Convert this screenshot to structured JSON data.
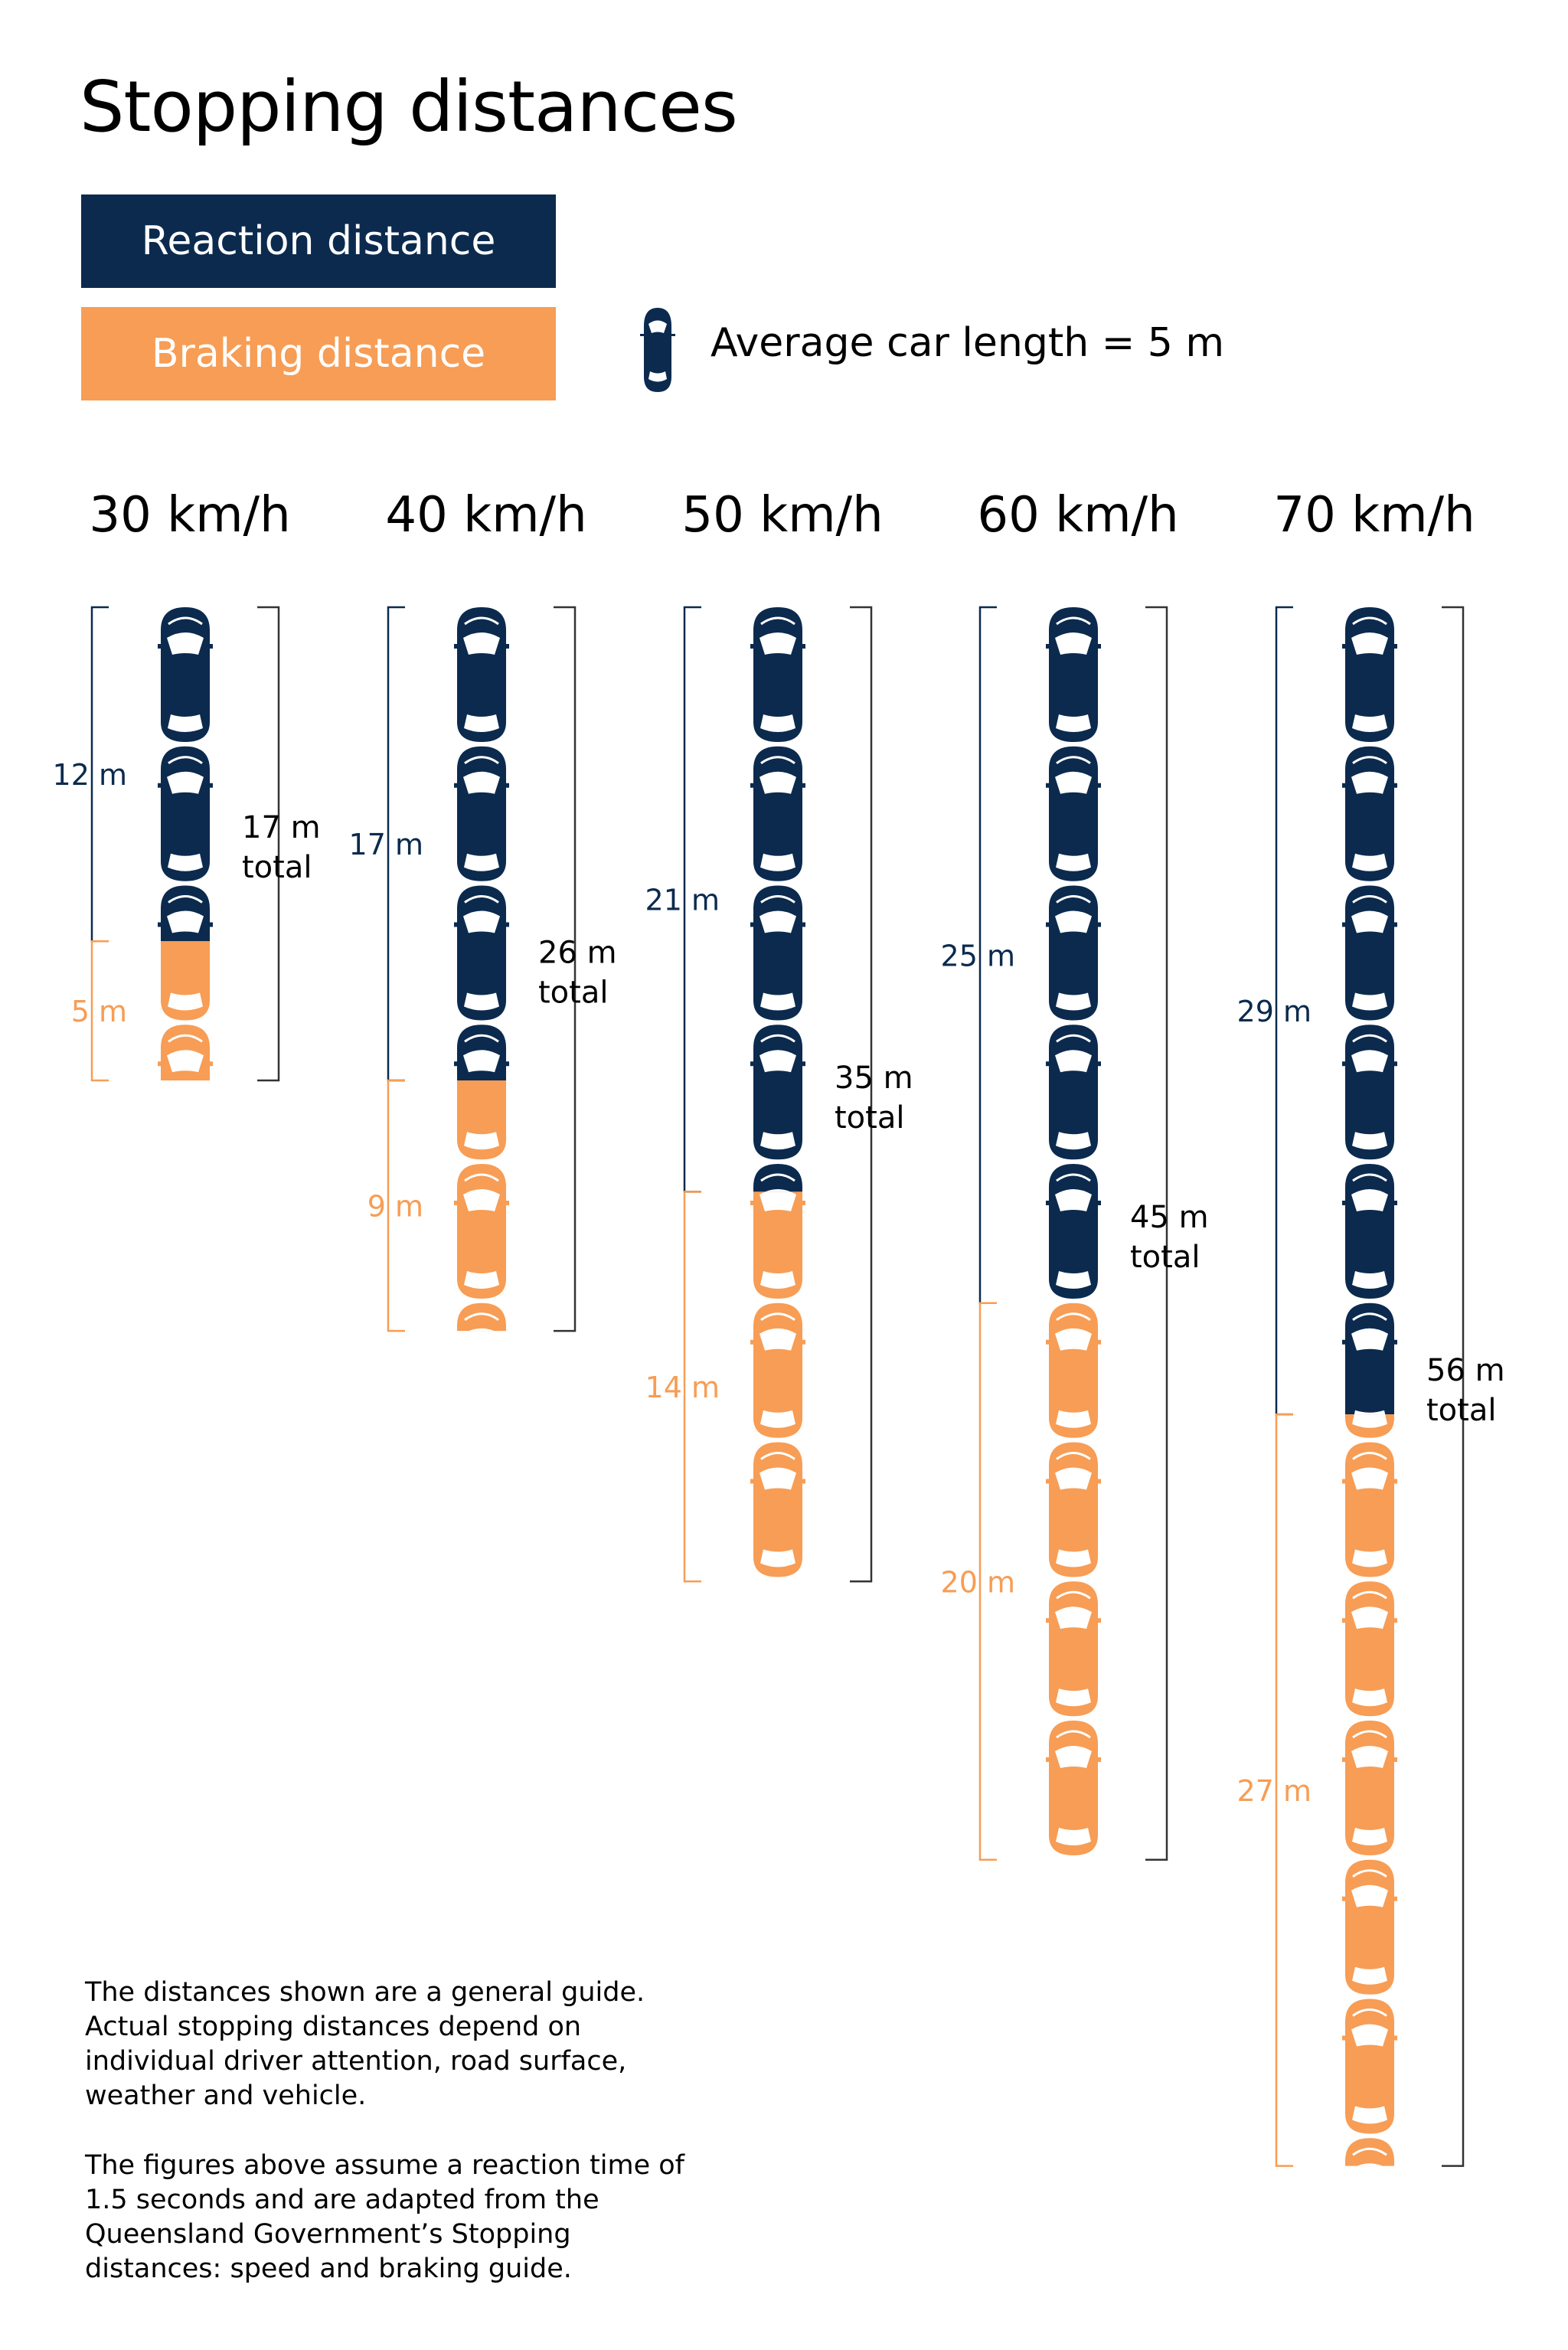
{
  "title": "Stopping distances",
  "legend": {
    "reaction_label": "Reaction distance",
    "braking_label": "Braking distance",
    "car_length_label": "Average car length = 5 m"
  },
  "colors": {
    "reaction": "#0b2a4e",
    "braking": "#f79d55",
    "total_bracket": "#333333",
    "white": "#ffffff"
  },
  "car_icon": "car-top-view-icon",
  "chart_data": {
    "type": "stacked-bar",
    "unit": "m",
    "car_length_m": 5,
    "series": [
      {
        "name": "Reaction distance",
        "key": "reaction"
      },
      {
        "name": "Braking distance",
        "key": "braking"
      }
    ],
    "categories": [
      "30 km/h",
      "40 km/h",
      "50 km/h",
      "60 km/h",
      "70 km/h"
    ],
    "bars": [
      {
        "speed": "30 km/h",
        "reaction": 12,
        "braking": 5,
        "total": 17,
        "reaction_label": "12 m",
        "braking_label": "5 m",
        "total_label_1": "17 m",
        "total_label_2": "total"
      },
      {
        "speed": "40 km/h",
        "reaction": 17,
        "braking": 9,
        "total": 26,
        "reaction_label": "17 m",
        "braking_label": "9 m",
        "total_label_1": "26 m",
        "total_label_2": "total"
      },
      {
        "speed": "50 km/h",
        "reaction": 21,
        "braking": 14,
        "total": 35,
        "reaction_label": "21 m",
        "braking_label": "14 m",
        "total_label_1": "35 m",
        "total_label_2": "total"
      },
      {
        "speed": "60 km/h",
        "reaction": 25,
        "braking": 20,
        "total": 45,
        "reaction_label": "25 m",
        "braking_label": "20 m",
        "total_label_1": "45 m",
        "total_label_2": "total"
      },
      {
        "speed": "70 km/h",
        "reaction": 29,
        "braking": 27,
        "total": 56,
        "reaction_label": "29 m",
        "braking_label": "27 m",
        "total_label_1": "56 m",
        "total_label_2": "total"
      }
    ]
  },
  "notes": {
    "paragraph1": "The distances shown are a general guide. Actual stopping distances depend on individual driver attention, road surface, weather and vehicle.",
    "paragraph2": "The figures above assume a reaction time of 1.5 seconds and are adapted from the Queensland Government’s Stopping distances: speed and braking guide."
  }
}
